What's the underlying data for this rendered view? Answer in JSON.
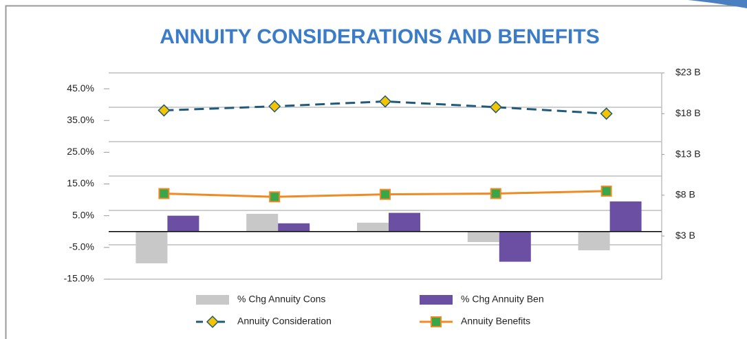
{
  "chart_data": {
    "type": "combo",
    "title": "ANNUITY CONSIDERATIONS AND BENEFITS",
    "categories": [
      null,
      null,
      null,
      null,
      null
    ],
    "series": [
      {
        "name": "% Chg Annuity Cons",
        "type": "bar",
        "color": "#c8c8c8",
        "values": [
          -10.0,
          5.6,
          2.8,
          -3.3,
          -5.9
        ]
      },
      {
        "name": "% Chg Annuity Ben",
        "type": "bar",
        "color": "#6a4fa3",
        "values": [
          5.0,
          2.6,
          5.9,
          -9.5,
          9.5
        ]
      },
      {
        "name": "Annuity Consideration",
        "type": "line",
        "axis": "y2",
        "color": "#1f5a7a",
        "marker_color": "#f5c400",
        "dashed": true,
        "values": [
          18.4,
          18.9,
          19.5,
          18.8,
          18.0
        ]
      },
      {
        "name": "Annuity Benefits",
        "type": "line",
        "axis": "y2",
        "color": "#f08a24",
        "marker_color": "#3aa64a",
        "dashed": false,
        "values": [
          8.2,
          7.8,
          8.1,
          8.2,
          8.5
        ]
      }
    ],
    "ylim": [
      -15,
      50
    ],
    "yticks": [
      {
        "value": 45,
        "label": "45.0%"
      },
      {
        "value": 35,
        "label": "35.0%"
      },
      {
        "value": 25,
        "label": "25.0%"
      },
      {
        "value": 15,
        "label": "15.0%"
      },
      {
        "value": 5,
        "label": "5.0%"
      },
      {
        "value": -5,
        "label": "-5.0%"
      },
      {
        "value": -15,
        "label": "-15.0%"
      }
    ],
    "y2lim": [
      -2.3,
      23
    ],
    "y2ticks": [
      {
        "value": 23,
        "label": "$23 B"
      },
      {
        "value": 18,
        "label": "$18 B"
      },
      {
        "value": 13,
        "label": "$13 B"
      },
      {
        "value": 8,
        "label": "$8 B"
      },
      {
        "value": 3,
        "label": "$3 B"
      }
    ],
    "legend": "bottom"
  }
}
